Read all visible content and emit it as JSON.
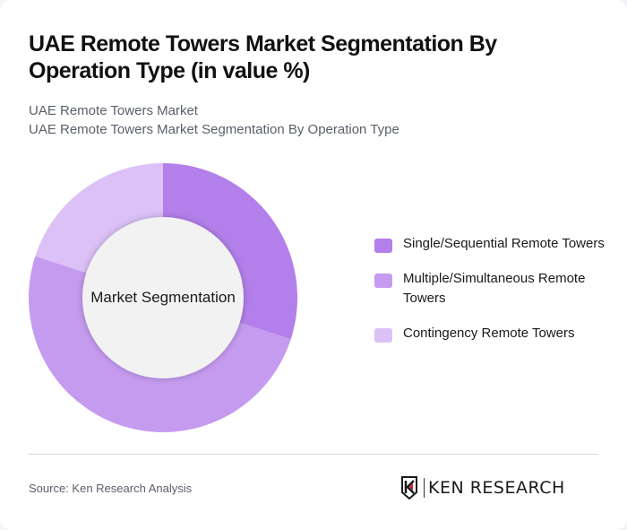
{
  "header": {
    "title": "UAE Remote Towers Market Segmentation By Operation Type (in value %)",
    "subtitle_line1": "UAE Remote Towers Market",
    "subtitle_line2": "UAE Remote Towers Market Segmentation By Operation Type"
  },
  "chart": {
    "center_label": "Market Segmentation"
  },
  "legend": {
    "items": [
      {
        "label": "Single/Sequential Remote Towers",
        "color": "#b37fea"
      },
      {
        "label": "Multiple/Simultaneous Remote Towers",
        "color": "#c59bef"
      },
      {
        "label": "Contingency Remote Towers",
        "color": "#dcc1f7"
      }
    ]
  },
  "footer": {
    "source": "Source: Ken Research Analysis",
    "logo_text": "KEN RESEARCH",
    "logo_accent": "#d0202a"
  },
  "chart_data": {
    "type": "pie",
    "subtype": "donut",
    "title": "UAE Remote Towers Market Segmentation By Operation Type (in value %)",
    "subtitle": "UAE Remote Towers Market Segmentation By Operation Type",
    "center_label": "Market Segmentation",
    "categories": [
      "Single/Sequential Remote Towers",
      "Multiple/Simultaneous Remote Towers",
      "Contingency Remote Towers"
    ],
    "values": [
      30,
      50,
      20
    ],
    "colors": [
      "#b37fea",
      "#c59bef",
      "#dcc1f7"
    ],
    "unit": "%",
    "start_angle": "12 o'clock, clockwise",
    "legend_position": "right",
    "data_labels": false
  }
}
